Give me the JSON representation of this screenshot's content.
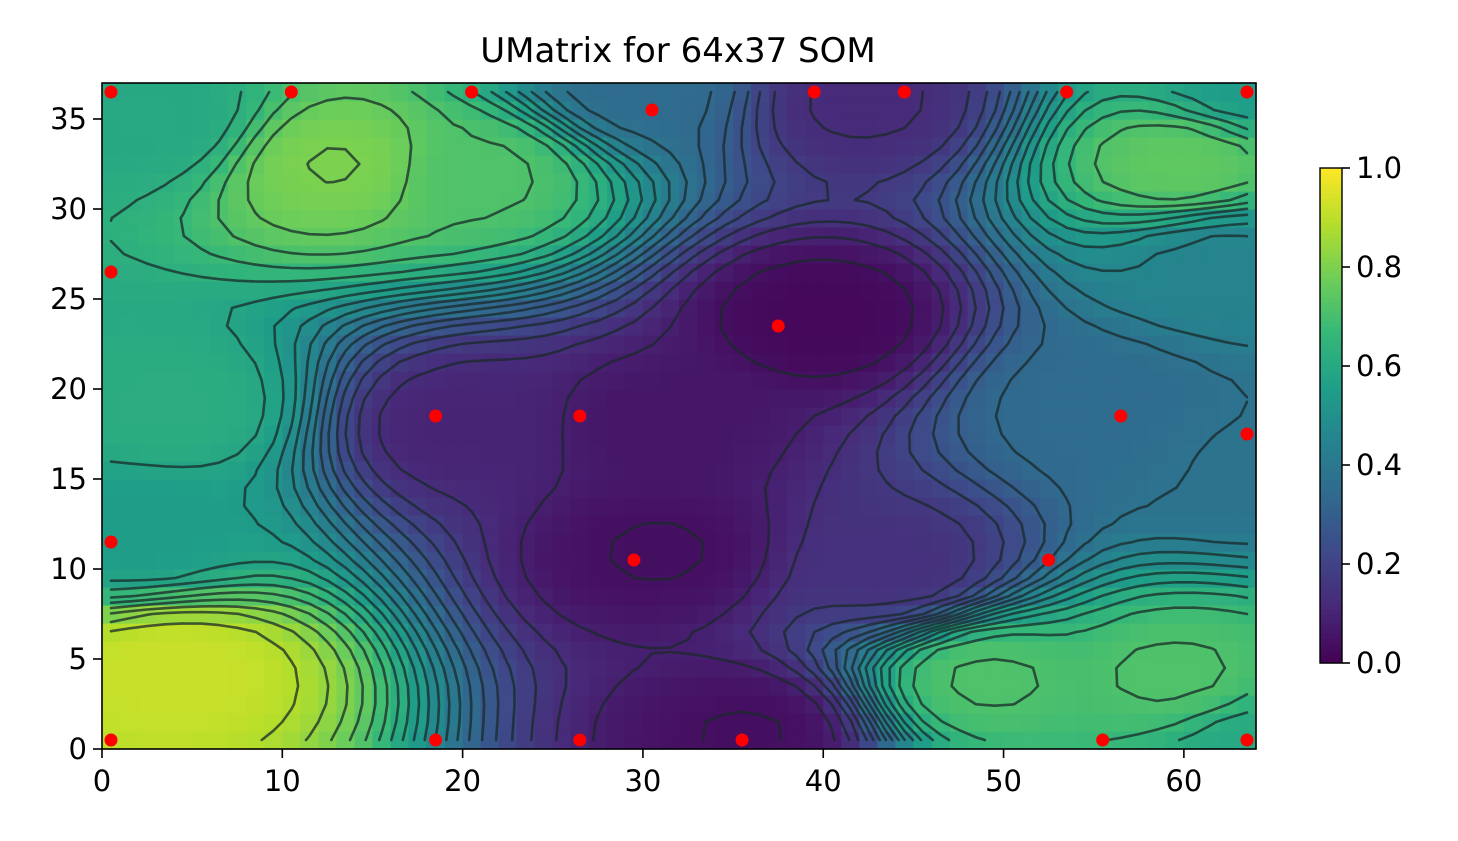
{
  "chart_data": {
    "type": "heatmap",
    "title": "UMatrix for 64x37 SOM",
    "xlabel": "",
    "ylabel": "",
    "xlim": [
      0,
      64
    ],
    "ylim": [
      0,
      37
    ],
    "x_ticks": [
      "0",
      "10",
      "20",
      "30",
      "40",
      "50",
      "60"
    ],
    "y_ticks": [
      "0",
      "5",
      "10",
      "15",
      "20",
      "25",
      "30",
      "35"
    ],
    "colorbar": {
      "range": [
        0,
        1
      ],
      "ticks": [
        "0.0",
        "0.2",
        "0.4",
        "0.6",
        "0.8",
        "1.0"
      ],
      "colormap": "viridis"
    },
    "contours": true,
    "grid": false,
    "peaks": [
      {
        "x": 4,
        "y": 4.5,
        "v": 0.92
      },
      {
        "x": 4,
        "y": 19,
        "v": 0.62
      },
      {
        "x": 2,
        "y": 12,
        "v": 0.55
      },
      {
        "x": 13,
        "y": 32.5,
        "v": 0.8
      },
      {
        "x": 21,
        "y": 32,
        "v": 0.72
      },
      {
        "x": 3,
        "y": 35,
        "v": 0.6
      },
      {
        "x": 60,
        "y": 32.5,
        "v": 0.75
      },
      {
        "x": 62,
        "y": 27,
        "v": 0.45
      },
      {
        "x": 49,
        "y": 4,
        "v": 0.72
      },
      {
        "x": 59.5,
        "y": 4,
        "v": 0.72
      },
      {
        "x": 64,
        "y": 0,
        "v": 0.6
      },
      {
        "x": 64,
        "y": 37,
        "v": 0.55
      },
      {
        "x": 30,
        "y": 37,
        "v": 0.35
      },
      {
        "x": 55,
        "y": 19,
        "v": 0.35
      },
      {
        "x": 64,
        "y": 16,
        "v": 0.38
      }
    ],
    "basins": [
      {
        "x": 40,
        "y": 24,
        "v": 0.02
      },
      {
        "x": 31,
        "y": 18,
        "v": 0.06
      },
      {
        "x": 31,
        "y": 11,
        "v": 0.04
      },
      {
        "x": 36,
        "y": 1,
        "v": 0.04
      },
      {
        "x": 20,
        "y": 18,
        "v": 0.1
      },
      {
        "x": 42,
        "y": 36,
        "v": 0.12
      },
      {
        "x": 44,
        "y": 10,
        "v": 0.14
      }
    ],
    "points": [
      {
        "x": 0.5,
        "y": 36.5
      },
      {
        "x": 10.5,
        "y": 36.5
      },
      {
        "x": 20.5,
        "y": 36.5
      },
      {
        "x": 30.5,
        "y": 35.5
      },
      {
        "x": 39.5,
        "y": 36.5
      },
      {
        "x": 44.5,
        "y": 36.5
      },
      {
        "x": 53.5,
        "y": 36.5
      },
      {
        "x": 63.5,
        "y": 36.5
      },
      {
        "x": 0.5,
        "y": 26.5
      },
      {
        "x": 37.5,
        "y": 23.5
      },
      {
        "x": 18.5,
        "y": 18.5
      },
      {
        "x": 26.5,
        "y": 18.5
      },
      {
        "x": 56.5,
        "y": 18.5
      },
      {
        "x": 63.5,
        "y": 17.5
      },
      {
        "x": 0.5,
        "y": 11.5
      },
      {
        "x": 29.5,
        "y": 10.5
      },
      {
        "x": 52.5,
        "y": 10.5
      },
      {
        "x": 0.5,
        "y": 0.5
      },
      {
        "x": 18.5,
        "y": 0.5
      },
      {
        "x": 26.5,
        "y": 0.5
      },
      {
        "x": 35.5,
        "y": 0.5
      },
      {
        "x": 55.5,
        "y": 0.5
      },
      {
        "x": 63.5,
        "y": 0.5
      }
    ],
    "point_color": "#ff0000",
    "contour_color": "#1a2a2a"
  }
}
